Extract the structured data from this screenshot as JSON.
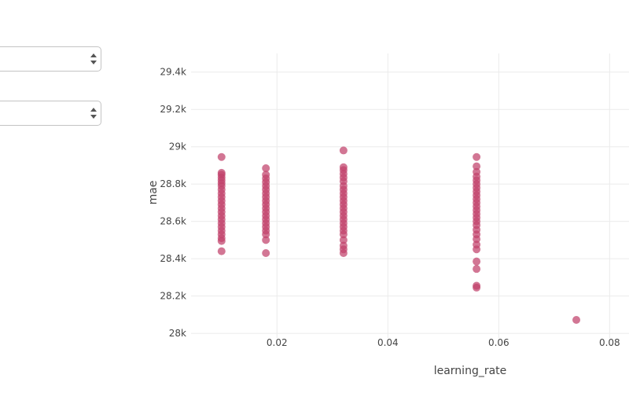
{
  "controls": {
    "dropdown_1": {
      "value": ""
    },
    "dropdown_2": {
      "value": ""
    }
  },
  "chart_data": {
    "type": "scatter",
    "xlabel": "learning_rate",
    "ylabel": "mae",
    "xlim": [
      0.0045,
      0.0835
    ],
    "ylim": [
      27975,
      29500
    ],
    "x_ticks": [
      0.02,
      0.04,
      0.06,
      0.08
    ],
    "x_tick_labels": [
      "0.02",
      "0.04",
      "0.06",
      "0.08"
    ],
    "y_ticks": [
      28000,
      28200,
      28400,
      28600,
      28800,
      29000,
      29200,
      29400
    ],
    "y_tick_labels": [
      "28k",
      "28.2k",
      "28.4k",
      "28.6k",
      "28.8k",
      "29k",
      "29.2k",
      "29.4k"
    ],
    "grid": true,
    "marker_color": "#c0416b",
    "points": [
      {
        "x": 0.01,
        "y": 28945
      },
      {
        "x": 0.01,
        "y": 28860
      },
      {
        "x": 0.01,
        "y": 28850
      },
      {
        "x": 0.01,
        "y": 28835
      },
      {
        "x": 0.01,
        "y": 28820
      },
      {
        "x": 0.01,
        "y": 28805
      },
      {
        "x": 0.01,
        "y": 28790
      },
      {
        "x": 0.01,
        "y": 28770
      },
      {
        "x": 0.01,
        "y": 28750
      },
      {
        "x": 0.01,
        "y": 28730
      },
      {
        "x": 0.01,
        "y": 28710
      },
      {
        "x": 0.01,
        "y": 28690
      },
      {
        "x": 0.01,
        "y": 28670
      },
      {
        "x": 0.01,
        "y": 28650
      },
      {
        "x": 0.01,
        "y": 28630
      },
      {
        "x": 0.01,
        "y": 28610
      },
      {
        "x": 0.01,
        "y": 28590
      },
      {
        "x": 0.01,
        "y": 28570
      },
      {
        "x": 0.01,
        "y": 28550
      },
      {
        "x": 0.01,
        "y": 28530
      },
      {
        "x": 0.01,
        "y": 28510
      },
      {
        "x": 0.01,
        "y": 28495
      },
      {
        "x": 0.01,
        "y": 28440
      },
      {
        "x": 0.018,
        "y": 28885
      },
      {
        "x": 0.018,
        "y": 28850
      },
      {
        "x": 0.018,
        "y": 28830
      },
      {
        "x": 0.018,
        "y": 28810
      },
      {
        "x": 0.018,
        "y": 28790
      },
      {
        "x": 0.018,
        "y": 28770
      },
      {
        "x": 0.018,
        "y": 28750
      },
      {
        "x": 0.018,
        "y": 28730
      },
      {
        "x": 0.018,
        "y": 28710
      },
      {
        "x": 0.018,
        "y": 28690
      },
      {
        "x": 0.018,
        "y": 28670
      },
      {
        "x": 0.018,
        "y": 28650
      },
      {
        "x": 0.018,
        "y": 28630
      },
      {
        "x": 0.018,
        "y": 28610
      },
      {
        "x": 0.018,
        "y": 28590
      },
      {
        "x": 0.018,
        "y": 28570
      },
      {
        "x": 0.018,
        "y": 28550
      },
      {
        "x": 0.018,
        "y": 28530
      },
      {
        "x": 0.018,
        "y": 28500
      },
      {
        "x": 0.018,
        "y": 28430
      },
      {
        "x": 0.032,
        "y": 28980
      },
      {
        "x": 0.032,
        "y": 28890
      },
      {
        "x": 0.032,
        "y": 28875
      },
      {
        "x": 0.032,
        "y": 28855
      },
      {
        "x": 0.032,
        "y": 28835
      },
      {
        "x": 0.032,
        "y": 28815
      },
      {
        "x": 0.032,
        "y": 28790
      },
      {
        "x": 0.032,
        "y": 28770
      },
      {
        "x": 0.032,
        "y": 28750
      },
      {
        "x": 0.032,
        "y": 28730
      },
      {
        "x": 0.032,
        "y": 28710
      },
      {
        "x": 0.032,
        "y": 28690
      },
      {
        "x": 0.032,
        "y": 28670
      },
      {
        "x": 0.032,
        "y": 28650
      },
      {
        "x": 0.032,
        "y": 28630
      },
      {
        "x": 0.032,
        "y": 28610
      },
      {
        "x": 0.032,
        "y": 28590
      },
      {
        "x": 0.032,
        "y": 28570
      },
      {
        "x": 0.032,
        "y": 28550
      },
      {
        "x": 0.032,
        "y": 28530
      },
      {
        "x": 0.032,
        "y": 28500
      },
      {
        "x": 0.032,
        "y": 28470
      },
      {
        "x": 0.032,
        "y": 28450
      },
      {
        "x": 0.032,
        "y": 28430
      },
      {
        "x": 0.056,
        "y": 28945
      },
      {
        "x": 0.056,
        "y": 28895
      },
      {
        "x": 0.056,
        "y": 28865
      },
      {
        "x": 0.056,
        "y": 28840
      },
      {
        "x": 0.056,
        "y": 28820
      },
      {
        "x": 0.056,
        "y": 28800
      },
      {
        "x": 0.056,
        "y": 28780
      },
      {
        "x": 0.056,
        "y": 28760
      },
      {
        "x": 0.056,
        "y": 28740
      },
      {
        "x": 0.056,
        "y": 28720
      },
      {
        "x": 0.056,
        "y": 28700
      },
      {
        "x": 0.056,
        "y": 28680
      },
      {
        "x": 0.056,
        "y": 28660
      },
      {
        "x": 0.056,
        "y": 28640
      },
      {
        "x": 0.056,
        "y": 28620
      },
      {
        "x": 0.056,
        "y": 28600
      },
      {
        "x": 0.056,
        "y": 28580
      },
      {
        "x": 0.056,
        "y": 28555
      },
      {
        "x": 0.056,
        "y": 28530
      },
      {
        "x": 0.056,
        "y": 28505
      },
      {
        "x": 0.056,
        "y": 28475
      },
      {
        "x": 0.056,
        "y": 28450
      },
      {
        "x": 0.056,
        "y": 28385
      },
      {
        "x": 0.056,
        "y": 28345
      },
      {
        "x": 0.056,
        "y": 28255
      },
      {
        "x": 0.056,
        "y": 28245
      },
      {
        "x": 0.074,
        "y": 28072
      }
    ]
  }
}
